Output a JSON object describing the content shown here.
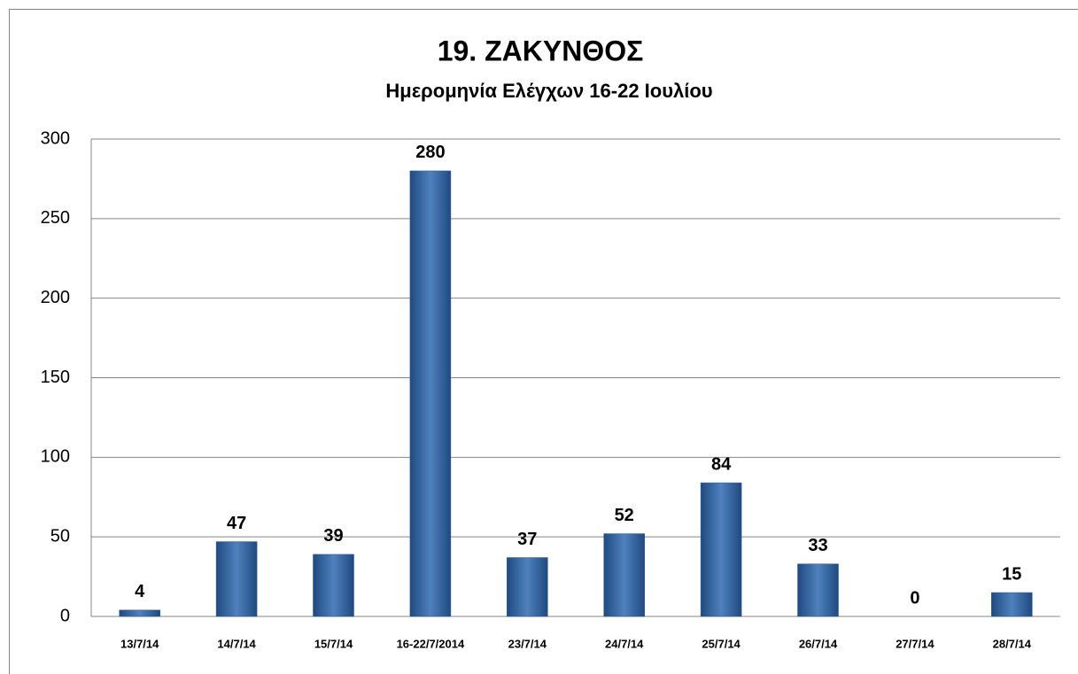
{
  "chart_data": {
    "type": "bar",
    "title": "19. ΖΑΚΥΝΘΟΣ",
    "subtitle": "Ημερομηνία Ελέγχων 16-22 Ιουλίου",
    "categories": [
      "13/7/14",
      "14/7/14",
      "15/7/14",
      "16-22/7/2014",
      "23/7/14",
      "24/7/14",
      "25/7/14",
      "26/7/14",
      "27/7/14",
      "28/7/14"
    ],
    "values": [
      4,
      47,
      39,
      280,
      37,
      52,
      84,
      33,
      0,
      15
    ],
    "color": "#4f81bd",
    "ylim": [
      0,
      300
    ],
    "yticks": [
      0,
      50,
      100,
      150,
      200,
      250,
      300
    ],
    "grid": true
  }
}
